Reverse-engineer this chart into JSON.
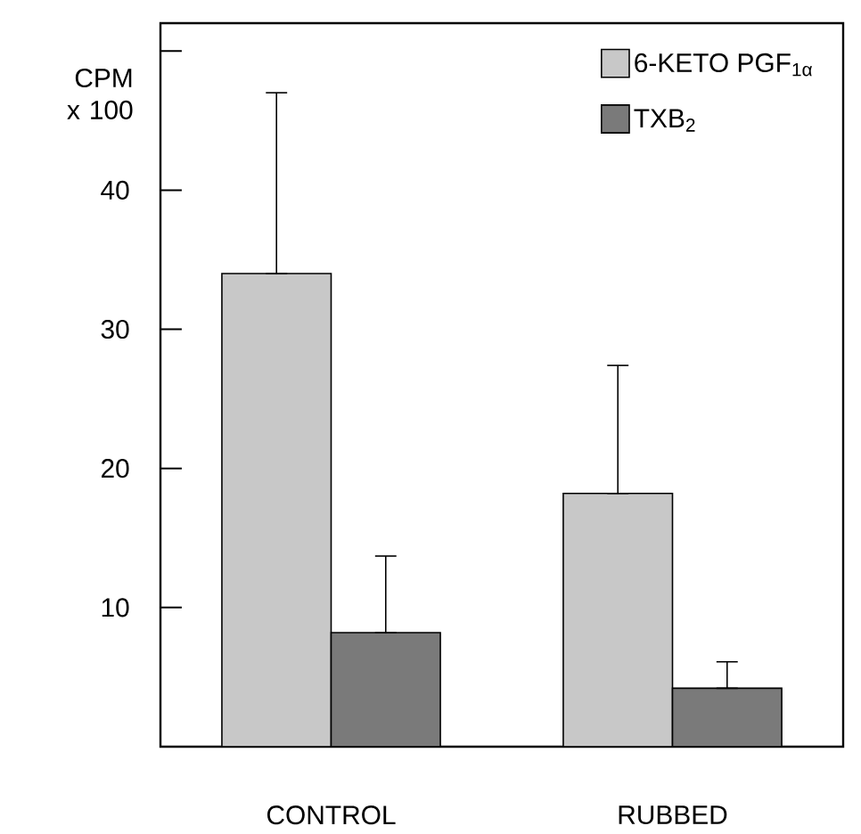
{
  "chart_data": {
    "type": "bar",
    "ylabel": "CPM x 100",
    "categories": [
      "CONTROL",
      "RUBBED"
    ],
    "series": [
      {
        "name": "6-KETO PGF$_{1α}$",
        "color": "#c8c8c8",
        "values": [
          34,
          18.2
        ],
        "errors": [
          [
            34,
            47
          ],
          [
            18.2,
            27.4
          ]
        ]
      },
      {
        "name": "TXB$_{2}$",
        "color": "#7a7a7a",
        "values": [
          8.2,
          4.2
        ],
        "errors": [
          [
            8.2,
            13.7
          ],
          [
            4.2,
            6.1
          ]
        ]
      }
    ],
    "ylim": [
      0,
      52
    ],
    "yticks": [
      10,
      20,
      30,
      40,
      {
        "value": 50,
        "label": null
      }
    ],
    "grid": false,
    "legend": "top right"
  }
}
